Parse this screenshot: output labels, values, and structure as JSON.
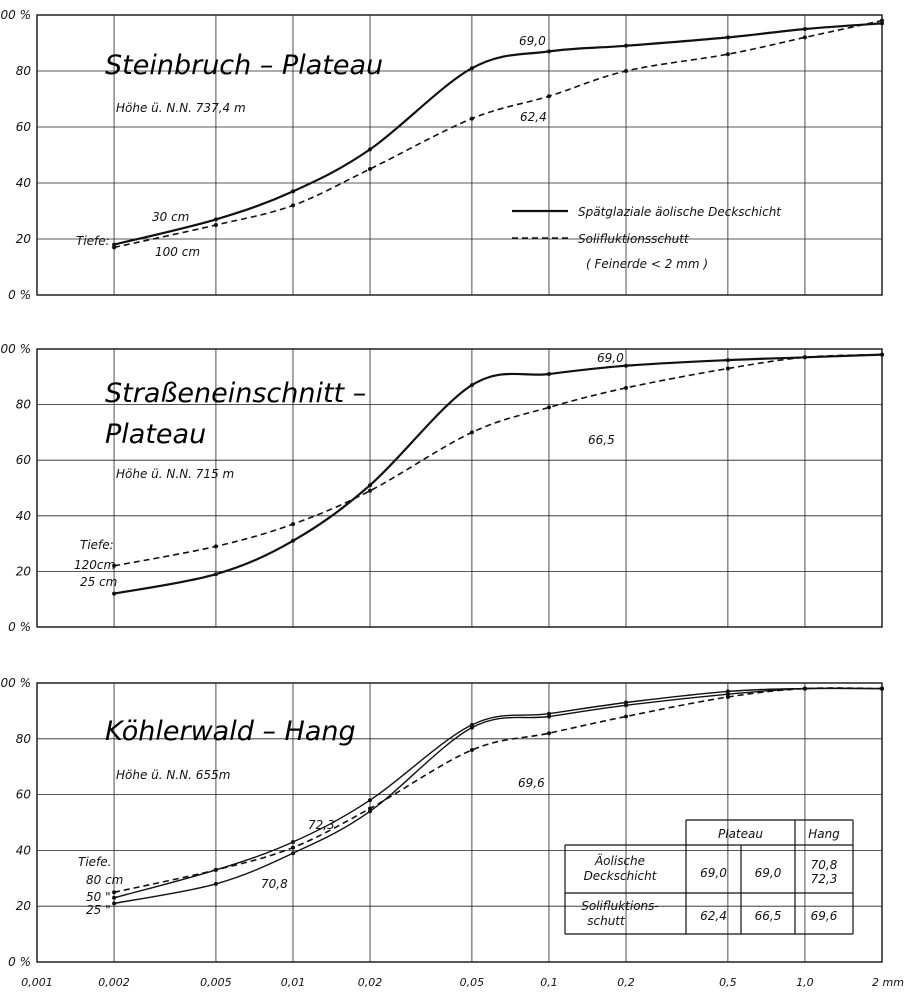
{
  "figure": {
    "x_tick_labels": [
      "0,001",
      "0,002",
      "0,005",
      "0,01",
      "0,02",
      "0,05",
      "0,1",
      "0,2",
      "0,5",
      "1,0",
      "2 mm"
    ]
  },
  "chart_data": [
    {
      "type": "line",
      "title": "Steinbruch - Plateau",
      "subtitle": "Höhe ü. N.N. 737,4 m",
      "x_scale": "log",
      "x_unit": "mm",
      "xlim": [
        0.001,
        2
      ],
      "ylim": [
        0,
        100
      ],
      "y_tick_labels": [
        "100 %",
        "80",
        "60",
        "40",
        "20",
        "0 %"
      ],
      "depth_label": "Tiefe:",
      "legend": {
        "position": "lower-right",
        "entries": [
          {
            "label": "Spätglaziale äolische Deckschicht",
            "style": "solid"
          },
          {
            "label": "Solifluktionsschutt",
            "style": "dashed"
          }
        ],
        "note": "( Feinerde < 2 mm )"
      },
      "series": [
        {
          "label": "30 cm",
          "style": "solid",
          "end_value": "69,0",
          "x": [
            0.002,
            0.005,
            0.01,
            0.02,
            0.05,
            0.1,
            0.2,
            0.5,
            1.0,
            2.0
          ],
          "y": [
            18,
            27,
            37,
            52,
            81,
            87,
            89,
            92,
            95,
            97
          ]
        },
        {
          "label": "100 cm",
          "style": "dashed",
          "end_value": "62,4",
          "x": [
            0.002,
            0.005,
            0.01,
            0.02,
            0.05,
            0.1,
            0.2,
            0.5,
            1.0,
            2.0
          ],
          "y": [
            17,
            25,
            32,
            45,
            63,
            71,
            80,
            86,
            92,
            98
          ]
        }
      ]
    },
    {
      "type": "line",
      "title": "Straßeneinschnitt - Plateau",
      "subtitle": "Höhe ü. N.N. 715 m",
      "x_scale": "log",
      "x_unit": "mm",
      "xlim": [
        0.001,
        2
      ],
      "ylim": [
        0,
        100
      ],
      "y_tick_labels": [
        "100 %",
        "80",
        "60",
        "40",
        "20",
        "0 %"
      ],
      "depth_label": "Tiefe:",
      "series": [
        {
          "label": "25 cm",
          "style": "solid",
          "end_value": "69,0",
          "x": [
            0.002,
            0.005,
            0.01,
            0.02,
            0.05,
            0.1,
            0.2,
            0.5,
            1.0,
            2.0
          ],
          "y": [
            12,
            19,
            31,
            51,
            87,
            91,
            94,
            96,
            97,
            98
          ]
        },
        {
          "label": "120cm",
          "style": "dashed",
          "end_value": "66,5",
          "x": [
            0.002,
            0.005,
            0.01,
            0.02,
            0.05,
            0.1,
            0.2,
            0.5,
            1.0,
            2.0
          ],
          "y": [
            22,
            29,
            37,
            49,
            70,
            79,
            86,
            93,
            97,
            98
          ]
        }
      ]
    },
    {
      "type": "line",
      "title": "Köhlerwald - Hang",
      "subtitle": "Höhe ü. N.N. 655m",
      "x_scale": "log",
      "x_unit": "mm",
      "xlim": [
        0.001,
        2
      ],
      "ylim": [
        0,
        100
      ],
      "y_tick_labels": [
        "100 %",
        "80",
        "60",
        "40",
        "20",
        "0 %"
      ],
      "depth_label": "Tiefe.",
      "series": [
        {
          "label": "25 \"",
          "style": "solid",
          "end_value": "70,8",
          "x": [
            0.002,
            0.005,
            0.01,
            0.02,
            0.05,
            0.1,
            0.2,
            0.5,
            1.0,
            2.0
          ],
          "y": [
            21,
            28,
            39,
            54,
            84,
            88,
            92,
            96,
            98,
            98
          ]
        },
        {
          "label": "50 \"",
          "style": "solid",
          "end_value": "72,3",
          "x": [
            0.002,
            0.005,
            0.01,
            0.02,
            0.05,
            0.1,
            0.2,
            0.5,
            1.0,
            2.0
          ],
          "y": [
            23,
            33,
            43,
            58,
            85,
            89,
            93,
            97,
            98,
            98
          ]
        },
        {
          "label": "80 cm",
          "style": "dashed",
          "end_value": "69,6",
          "x": [
            0.002,
            0.005,
            0.01,
            0.02,
            0.05,
            0.1,
            0.2,
            0.5,
            1.0,
            2.0
          ],
          "y": [
            25,
            33,
            41,
            55,
            76,
            82,
            88,
            95,
            98,
            98
          ]
        }
      ],
      "table": {
        "headers": [
          "",
          "Plateau",
          "Hang"
        ],
        "rows": [
          {
            "label": "Äolische Deckschicht",
            "values": [
              "69,0",
              "69,0",
              "70,8\n72,3"
            ]
          },
          {
            "label": "Solifluktions-schutt",
            "values": [
              "62,4",
              "66,5",
              "69,6"
            ]
          }
        ]
      }
    }
  ]
}
